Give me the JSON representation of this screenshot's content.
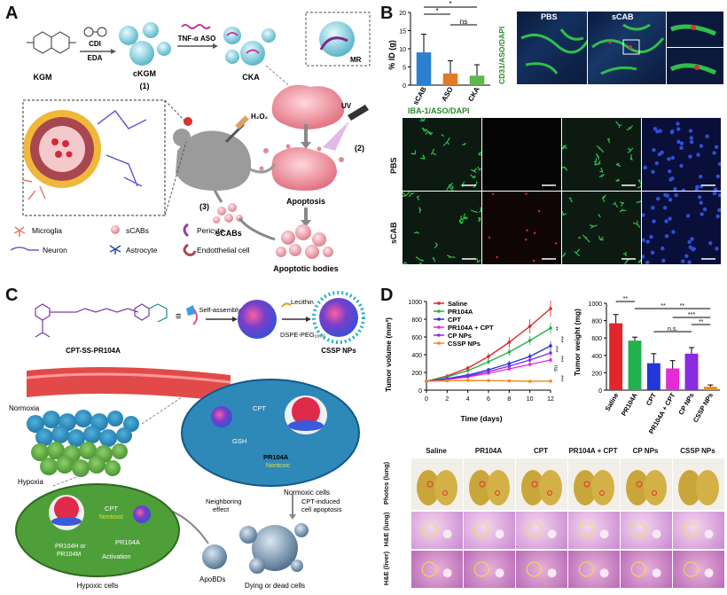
{
  "panels": {
    "a": {
      "label": "A",
      "steps": {
        "kgm": "KGM",
        "cdi": "CDI",
        "eda": "EDA",
        "ckgm": "cKGM",
        "step1": "(1)",
        "tnf": "TNF-α ASO",
        "cka": "CKA",
        "mr": "MR",
        "h2o2": "H₂O₂",
        "uv": "UV",
        "step2": "(2)",
        "apoptosis": "Apoptosis",
        "apoptotic_bodies": "Apoptotic bodies",
        "scabs": "sCABs",
        "step3": "(3)"
      },
      "legend": [
        {
          "name": "Microglia",
          "icon": "microglia-icon"
        },
        {
          "name": "sCABs",
          "icon": "scab-icon"
        },
        {
          "name": "Pericyte",
          "icon": "pericyte-icon"
        },
        {
          "name": "Neuron",
          "icon": "neuron-icon"
        },
        {
          "name": "Astrocyte",
          "icon": "astrocyte-icon"
        },
        {
          "name": "Endotthelial cell",
          "icon": "endothelial-icon"
        }
      ]
    },
    "b": {
      "label": "B",
      "chart_data": {
        "type": "bar",
        "categories": [
          "sCAB",
          "ASO",
          "CKA"
        ],
        "values": [
          9.0,
          3.2,
          2.6
        ],
        "errors": [
          5.0,
          3.5,
          3.0
        ],
        "ylabel": "% ID (g)",
        "ylim": [
          0,
          20
        ],
        "yticks": [
          0,
          5,
          10,
          15,
          20
        ],
        "color": "#2a7fd0",
        "significance": [
          {
            "from": 0,
            "to": 2,
            "label": "*"
          },
          {
            "from": 0,
            "to": 1,
            "label": "*"
          },
          {
            "from": 1,
            "to": 2,
            "label": "ns"
          }
        ]
      },
      "top_images": {
        "pbs": "PBS",
        "scab": "sCAB",
        "stain": "CD31/ASO/DAPI"
      },
      "grid": {
        "stain": "IBA-1/ASO/DAPI",
        "rows": [
          "PBS",
          "sCAB"
        ]
      }
    },
    "c": {
      "label": "C",
      "compound": "CPT-SS-PR104A",
      "self_assembly": "Self-assembly",
      "lecithin": "Lecithin",
      "dspe": "DSPE-PEG₂₀₀₀",
      "cssp": "CSSP NPs",
      "normoxia": "Normoxia",
      "hypoxia": "Hypoxia",
      "cpt": "CPT",
      "gsh": "GSH",
      "pr104a": "PR104A",
      "nontoxic": "Nontoxic",
      "normoxic_cells": "Normoxic cells",
      "cpt_induced": "CPT-induced",
      "cell_apoptosis": "cell apoptosis",
      "neighboring": "Neighboring",
      "effect": "effect",
      "apobds": "ApoBDs",
      "dying": "Dying or dead cells",
      "hypoxic_cells": "Hypoxic cells",
      "activation": "Activation",
      "pr104h": "PR104H or",
      "pr104m": "PR104M"
    },
    "d": {
      "label": "D",
      "line_chart": {
        "type": "line",
        "xlabel": "Time (days)",
        "ylabel": "Tumor volume (mm³)",
        "x": [
          0,
          2,
          4,
          6,
          8,
          10,
          12
        ],
        "xlim": [
          0,
          12
        ],
        "ylim": [
          0,
          1000
        ],
        "yticks": [
          0,
          200,
          400,
          600,
          800,
          1000
        ],
        "series": [
          {
            "name": "Saline",
            "color": "#e0262a",
            "values": [
              100,
              160,
              250,
              380,
              540,
              720,
              920
            ],
            "err": [
              0,
              15,
              20,
              40,
              60,
              80,
              90
            ]
          },
          {
            "name": "PR104A",
            "color": "#22b14c",
            "values": [
              100,
              150,
              220,
              320,
              430,
              560,
              700
            ],
            "err": [
              0,
              12,
              18,
              30,
              40,
              50,
              60
            ]
          },
          {
            "name": "CPT",
            "color": "#2336d8",
            "values": [
              100,
              130,
              170,
              230,
              300,
              380,
              500
            ],
            "err": [
              0,
              10,
              14,
              20,
              30,
              40,
              50
            ]
          },
          {
            "name": "PR104A + CPT",
            "color": "#e62ad6",
            "values": [
              100,
              120,
              150,
              190,
              240,
              290,
              340
            ],
            "err": [
              0,
              10,
              12,
              15,
              20,
              25,
              30
            ]
          },
          {
            "name": "CP NPs",
            "color": "#8a2be2",
            "values": [
              100,
              125,
              160,
              210,
              270,
              340,
              420
            ],
            "err": [
              0,
              10,
              12,
              18,
              25,
              30,
              40
            ]
          },
          {
            "name": "CSSP NPs",
            "color": "#f08a1c",
            "values": [
              100,
              105,
              110,
              108,
              104,
              100,
              102
            ],
            "err": [
              0,
              5,
              6,
              6,
              6,
              6,
              8
            ]
          }
        ],
        "sig_labels": [
          "**",
          "***",
          "***",
          "***",
          "ns",
          "***"
        ]
      },
      "bar_chart": {
        "type": "bar",
        "ylabel": "Tumor weight (mg)",
        "categories": [
          "Saline",
          "PR104A",
          "CPT",
          "PR104A + CPT",
          "CP NPs",
          "CSSP NPs"
        ],
        "values": [
          770,
          570,
          310,
          250,
          420,
          40
        ],
        "errors": [
          100,
          40,
          110,
          90,
          70,
          20
        ],
        "colors": [
          "#e0262a",
          "#22b14c",
          "#2336d8",
          "#e62ad6",
          "#8a2be2",
          "#f08a1c"
        ],
        "ylim": [
          0,
          1000
        ],
        "yticks": [
          0,
          200,
          400,
          600,
          800,
          1000
        ],
        "significance": [
          {
            "from": 0,
            "to": 1,
            "label": "**"
          },
          {
            "from": 1,
            "to": 4,
            "label": "**"
          },
          {
            "from": 2,
            "to": 5,
            "label": "**"
          },
          {
            "from": 2,
            "to": 4,
            "label": "n.s."
          },
          {
            "from": 4,
            "to": 5,
            "label": "**"
          },
          {
            "from": 3,
            "to": 5,
            "label": "***"
          }
        ]
      },
      "photo_columns": [
        "Saline",
        "PR104A",
        "CPT",
        "PR104A + CPT",
        "CP NPs",
        "CSSP NPs"
      ],
      "photo_rows": [
        "Photos (lung)",
        "H&E (lung)",
        "H&E (liver)"
      ]
    }
  }
}
